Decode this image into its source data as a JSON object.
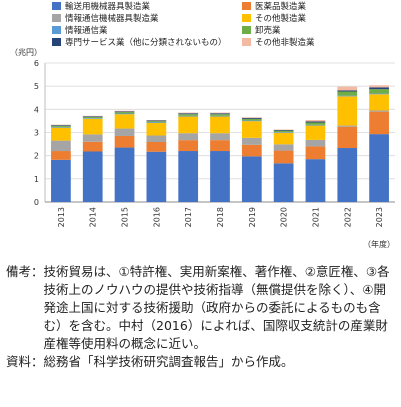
{
  "chart_data": {
    "type": "bar",
    "stacked": true,
    "y_unit_label": "（兆円）",
    "x_unit_label": "（年度）",
    "ylim": [
      0,
      6
    ],
    "yticks": [
      0,
      1,
      2,
      3,
      4,
      5,
      6
    ],
    "categories": [
      "2013",
      "2014",
      "2015",
      "2016",
      "2017",
      "2018",
      "2019",
      "2020",
      "2021",
      "2022",
      "2023"
    ],
    "series": [
      {
        "name": "輸送用機械器具製造業",
        "color": "#4472C4",
        "values": [
          1.82,
          2.18,
          2.35,
          2.17,
          2.2,
          2.2,
          1.97,
          1.67,
          1.85,
          2.33,
          2.93
        ]
      },
      {
        "name": "医薬品製造業",
        "color": "#ED7D31",
        "values": [
          0.38,
          0.42,
          0.5,
          0.42,
          0.47,
          0.47,
          0.5,
          0.55,
          0.55,
          0.92,
          0.97
        ]
      },
      {
        "name": "情報通信機械器具製造業",
        "color": "#A5A5A5",
        "values": [
          0.45,
          0.32,
          0.32,
          0.28,
          0.3,
          0.3,
          0.3,
          0.27,
          0.28,
          0.05,
          0.05
        ]
      },
      {
        "name": "その他製造業",
        "color": "#FFC000",
        "values": [
          0.56,
          0.67,
          0.62,
          0.54,
          0.72,
          0.72,
          0.72,
          0.5,
          0.62,
          1.26,
          0.7
        ]
      },
      {
        "name": "情報通信業",
        "color": "#5B9BD5",
        "values": [
          0.03,
          0.03,
          0.03,
          0.03,
          0.03,
          0.03,
          0.03,
          0.03,
          0.03,
          0.03,
          0.03
        ]
      },
      {
        "name": "卸売業",
        "color": "#70AD47",
        "values": [
          0.05,
          0.05,
          0.06,
          0.05,
          0.07,
          0.07,
          0.07,
          0.06,
          0.1,
          0.18,
          0.19
        ]
      },
      {
        "name": "専門サービス業（他に分類されないもの）",
        "color": "#264478",
        "values": [
          0.03,
          0.03,
          0.03,
          0.03,
          0.04,
          0.04,
          0.04,
          0.03,
          0.05,
          0.05,
          0.08
        ]
      },
      {
        "name": "その他非製造業",
        "color": "#F4B9A3",
        "values": [
          0.02,
          0.02,
          0.03,
          0.02,
          0.03,
          0.03,
          0.03,
          0.02,
          0.06,
          0.16,
          0.09
        ]
      }
    ]
  },
  "notes": {
    "remarks_label": "備考：",
    "remarks_text": "技術貿易は、①特許権、実用新案権、著作権、②意匠権、③各技術上のノウハウの提供や技術指導（無償提供を除く）、④開発途上国に対する技術援助（政府からの委託によるものも含む）を含む。中村（2016）によれば、国際収支統計の産業財産権等使用料の概念に近い。",
    "source_label": "資料：",
    "source_text": "総務省「科学技術研究調査報告」から作成。"
  }
}
